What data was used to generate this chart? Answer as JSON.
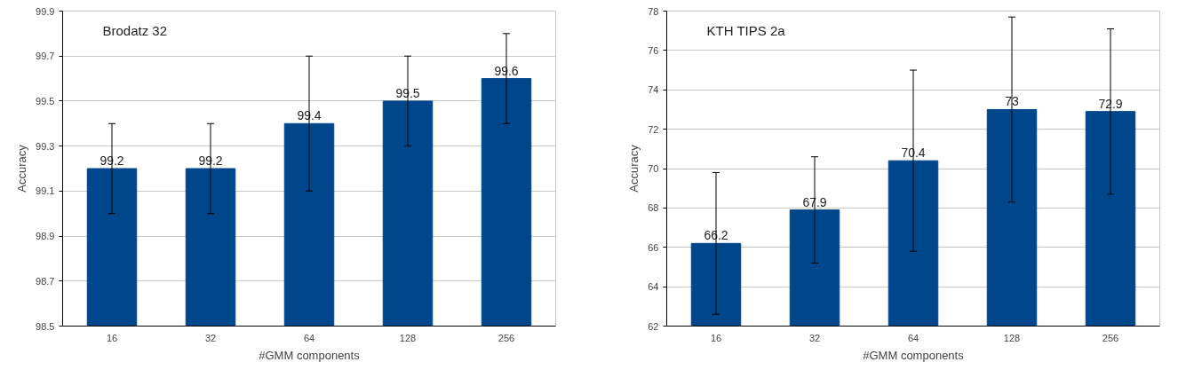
{
  "chart_data": [
    {
      "type": "bar",
      "title": "Brodatz 32",
      "xlabel": "#GMM components",
      "ylabel": "Accuracy",
      "categories": [
        "16",
        "32",
        "64",
        "128",
        "256"
      ],
      "color": "#00468b",
      "values": [
        99.2,
        99.2,
        99.4,
        99.5,
        99.6
      ],
      "errors": [
        [
          99.0,
          99.4
        ],
        [
          99.0,
          99.4
        ],
        [
          99.1,
          99.7
        ],
        [
          99.3,
          99.7
        ],
        [
          99.4,
          99.8
        ]
      ],
      "ylim": [
        98.5,
        99.9
      ],
      "yticks": [
        98.5,
        98.7,
        98.9,
        99.1,
        99.3,
        99.5,
        99.7,
        99.9
      ],
      "grid": "y",
      "data_labels": true
    },
    {
      "type": "bar",
      "title": "KTH TIPS 2a",
      "xlabel": "#GMM components",
      "ylabel": "Accuracy",
      "categories": [
        "16",
        "32",
        "64",
        "128",
        "256"
      ],
      "color": "#00468b",
      "values": [
        66.2,
        67.9,
        70.4,
        73,
        72.9
      ],
      "errors": [
        [
          62.6,
          69.8
        ],
        [
          65.2,
          70.6
        ],
        [
          65.8,
          75.0
        ],
        [
          68.3,
          77.7
        ],
        [
          68.7,
          77.1
        ]
      ],
      "ylim": [
        62,
        78
      ],
      "yticks": [
        62,
        64,
        66,
        68,
        70,
        72,
        74,
        76,
        78
      ],
      "grid": "y",
      "data_labels": true
    }
  ]
}
